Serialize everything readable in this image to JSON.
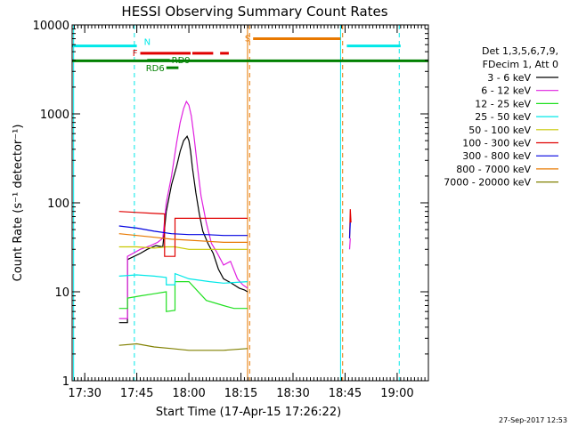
{
  "chart_data": {
    "type": "line",
    "title": "HESSI Observing Summary Count Rates",
    "xlabel": "Start Time (17-Apr-15 17:26:22)",
    "ylabel": "Count Rate (s⁻¹ detector⁻¹)",
    "yscale": "log",
    "ylim": [
      1,
      10000
    ],
    "xlim_minutes": [
      1046.37,
      1149.0
    ],
    "x_ticks": [
      {
        "value": 1050,
        "label": "17:30"
      },
      {
        "value": 1065,
        "label": "17:45"
      },
      {
        "value": 1080,
        "label": "18:00"
      },
      {
        "value": 1095,
        "label": "18:15"
      },
      {
        "value": 1110,
        "label": "18:30"
      },
      {
        "value": 1125,
        "label": "18:45"
      },
      {
        "value": 1140,
        "label": "19:00"
      }
    ],
    "y_ticks": [
      {
        "value": 1,
        "label": "1"
      },
      {
        "value": 10,
        "label": "10"
      },
      {
        "value": 100,
        "label": "100"
      },
      {
        "value": 1000,
        "label": "1000"
      },
      {
        "value": 10000,
        "label": "10000"
      }
    ],
    "legend": {
      "position": "right",
      "header": [
        "Det 1,3,5,6,7,9,",
        "FDecim 1, Att 0"
      ],
      "entries": [
        {
          "label": "3 - 6 keV",
          "color": "#000000"
        },
        {
          "label": "6 - 12 keV",
          "color": "#e020e0"
        },
        {
          "label": "12 - 25 keV",
          "color": "#20e020"
        },
        {
          "label": "25 - 50 keV",
          "color": "#00e8e8"
        },
        {
          "label": "50 - 100 keV",
          "color": "#c8c800"
        },
        {
          "label": "100 - 300 keV",
          "color": "#e00000"
        },
        {
          "label": "300 - 800 keV",
          "color": "#0000e0"
        },
        {
          "label": "800 - 7000 keV",
          "color": "#e87800"
        },
        {
          "label": "7000 - 20000 keV",
          "color": "#808000"
        }
      ]
    },
    "series": [
      {
        "name": "3 - 6 keV",
        "color": "#000000",
        "x": [
          1059.9,
          1061.5,
          1062.0,
          1062.3,
          1062.3,
          1066.0,
          1068.0,
          1070.5,
          1072.5,
          1073.5,
          1075.0,
          1076.5,
          1077.5,
          1078.5,
          1079.5,
          1080.0,
          1080.5,
          1081.0,
          1082.0,
          1083.0,
          1084.0,
          1085.5,
          1087.0,
          1088.5,
          1090.0,
          1091.5,
          1093.0,
          1094.5,
          1096.0,
          1096.9
        ],
        "y": [
          4.5,
          4.5,
          4.5,
          4.5,
          23,
          27,
          30,
          33,
          32,
          80,
          160,
          260,
          380,
          500,
          560,
          500,
          380,
          250,
          130,
          75,
          48,
          35,
          27,
          18,
          14,
          13,
          12,
          11,
          10.5,
          10
        ]
      },
      {
        "name": "6 - 12 keV",
        "color": "#e020e0",
        "x": [
          1059.9,
          1062.3,
          1062.3,
          1066.0,
          1069.0,
          1071.0,
          1072.5,
          1073.5,
          1075.0,
          1076.5,
          1077.5,
          1078.5,
          1079.3,
          1080.0,
          1080.7,
          1081.5,
          1082.5,
          1083.5,
          1085.0,
          1086.5,
          1088.0,
          1090.0,
          1092.0,
          1094.0,
          1095.5,
          1096.9
        ],
        "y": [
          5,
          5,
          25,
          30,
          33,
          36,
          40,
          100,
          200,
          480,
          800,
          1150,
          1380,
          1250,
          950,
          550,
          250,
          120,
          60,
          35,
          28,
          20,
          22,
          14,
          12,
          11
        ]
      },
      {
        "name": "12 - 25 keV",
        "color": "#20e020",
        "x": [
          1059.9,
          1062.3,
          1062.3,
          1066.0,
          1070.0,
          1073.5,
          1073.5,
          1076.0,
          1076.0,
          1080.0,
          1085.0,
          1090.0,
          1093.0,
          1096.9
        ],
        "y": [
          6.5,
          6.5,
          8.5,
          9,
          9.5,
          10,
          6,
          6.2,
          13,
          13,
          8,
          7,
          6.5,
          6.5
        ]
      },
      {
        "name": "25 - 50 keV",
        "color": "#00e8e8",
        "x": [
          1059.9,
          1065.0,
          1070.0,
          1073.5,
          1073.5,
          1076.0,
          1076.0,
          1080.0,
          1086.0,
          1090.0,
          1096.9
        ],
        "y": [
          15,
          15.5,
          15,
          14.5,
          12,
          12,
          16,
          14,
          13,
          12.5,
          13
        ]
      },
      {
        "name": "50 - 100 keV",
        "color": "#c8c800",
        "x": [
          1059.9,
          1065.0,
          1070.0,
          1073.5,
          1076.0,
          1080.0,
          1085.0,
          1090.0,
          1096.9
        ],
        "y": [
          32,
          32,
          31,
          32,
          32,
          30,
          30,
          30,
          30
        ]
      },
      {
        "name": "100 - 300 keV",
        "color": "#e00000",
        "x": [
          1059.9,
          1065.0,
          1070.0,
          1073.0,
          1073.0,
          1076.0,
          1076.0,
          1080.0,
          1085.0,
          1090.0,
          1096.9
        ],
        "y": [
          80,
          78,
          76,
          75,
          25,
          25,
          67,
          67,
          67,
          67,
          67
        ]
      },
      {
        "name": "300 - 800 keV",
        "color": "#0000e0",
        "x": [
          1059.9,
          1065.0,
          1070.0,
          1075.0,
          1080.0,
          1085.0,
          1090.0,
          1096.9
        ],
        "y": [
          55,
          52,
          48,
          45,
          44,
          44,
          43,
          43
        ]
      },
      {
        "name": "800 - 7000 keV",
        "color": "#e87800",
        "x": [
          1059.9,
          1065.0,
          1070.0,
          1075.0,
          1080.0,
          1085.0,
          1090.0,
          1096.9
        ],
        "y": [
          45,
          43,
          41,
          39,
          38,
          37,
          36,
          36
        ]
      },
      {
        "name": "7000 - 20000 keV",
        "color": "#808000",
        "x": [
          1059.9,
          1065.0,
          1070.0,
          1075.0,
          1080.0,
          1085.0,
          1090.0,
          1096.9
        ],
        "y": [
          2.5,
          2.6,
          2.4,
          2.3,
          2.2,
          2.2,
          2.2,
          2.3
        ]
      },
      {
        "name": "6 - 12 keV",
        "color": "#e020e0",
        "x": [
          1126.3,
          1126.5
        ],
        "y": [
          30,
          40
        ]
      },
      {
        "name": "100 - 300 keV",
        "color": "#e00000",
        "x": [
          1126.3,
          1126.5,
          1126.7
        ],
        "y": [
          40,
          85,
          60
        ]
      },
      {
        "name": "300 - 800 keV",
        "color": "#0000e0",
        "x": [
          1126.3,
          1126.5
        ],
        "y": [
          40,
          60
        ]
      }
    ],
    "flag_lines": [
      {
        "label": "N",
        "color": "#00e8e8",
        "level": 5800,
        "segments": [
          [
            1046.37,
            1065.0
          ],
          [
            1125.5,
            1141.0
          ]
        ]
      },
      {
        "label": "S",
        "color": "#e87800",
        "level": 7000,
        "segments": [
          [
            1098.5,
            1123.7
          ]
        ]
      },
      {
        "label": "F",
        "color": "#e00000",
        "level": 4800,
        "segments": [
          [
            1066.0,
            1080.5
          ],
          [
            1081.0,
            1087.0
          ],
          [
            1089.0,
            1091.5
          ]
        ]
      },
      {
        "label": "RD9",
        "color": "#008000",
        "level": 4000,
        "segments": [
          [
            1068.0,
            1074.5
          ]
        ]
      },
      {
        "label": "RD6",
        "color": "#008000",
        "level": 3300,
        "segments": [
          [
            1073.5,
            1077.0
          ]
        ]
      },
      {
        "label": "",
        "color": "#008000",
        "level": 3950,
        "segments": [
          [
            1046.37,
            1149.0
          ]
        ]
      }
    ],
    "vertical_lines": [
      {
        "x": 1046.8,
        "color": "#00e8e8",
        "style": "solid"
      },
      {
        "x": 1064.3,
        "color": "#00e8e8",
        "style": "dashed"
      },
      {
        "x": 1096.9,
        "color": "#e87800",
        "style": "solid"
      },
      {
        "x": 1097.5,
        "color": "#e87800",
        "style": "dashed"
      },
      {
        "x": 1123.7,
        "color": "#00e8e8",
        "style": "solid"
      },
      {
        "x": 1124.3,
        "color": "#e87800",
        "style": "dashed"
      },
      {
        "x": 1140.6,
        "color": "#00e8e8",
        "style": "dashed"
      }
    ]
  },
  "footer": {
    "timestamp": "27-Sep-2017 12:53"
  }
}
